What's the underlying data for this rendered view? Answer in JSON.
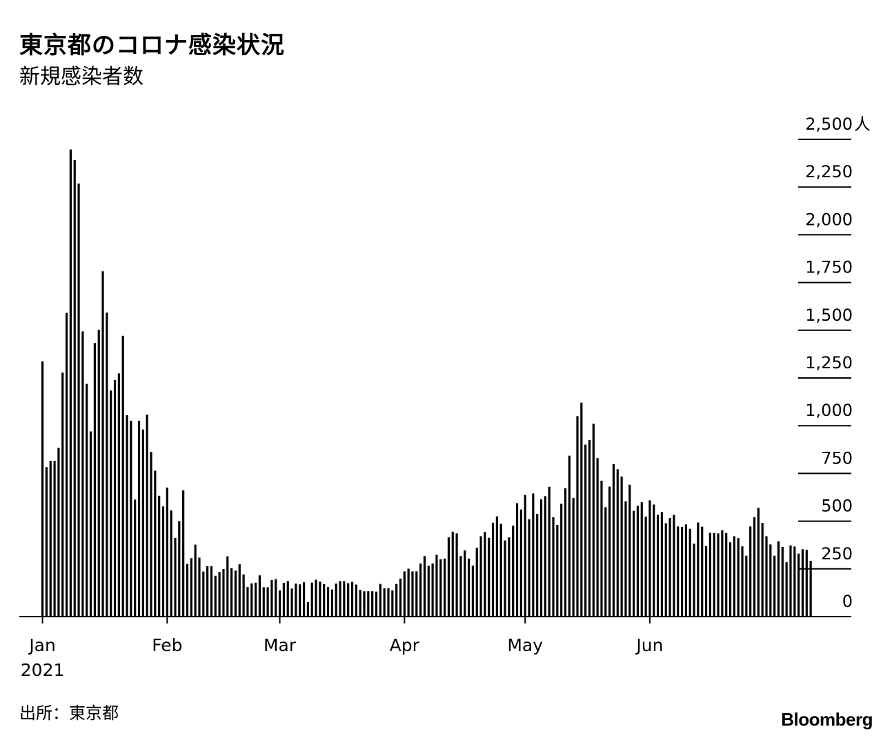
{
  "title": "東京都のコロナ感染状況",
  "subtitle": "新規感染者数",
  "source": "出所：東京都",
  "logo": "Bloomberg",
  "chart_data": {
    "type": "bar",
    "title": "東京都のコロナ感染状況",
    "subtitle": "新規感染者数",
    "y_unit": "人",
    "ylim": [
      0,
      2500
    ],
    "yticks": [
      0,
      250,
      500,
      750,
      1000,
      1250,
      1500,
      1750,
      2000,
      2250,
      2500
    ],
    "ytick_labels": [
      "0",
      "250",
      "500",
      "750",
      "1,000",
      "1,250",
      "1,500",
      "1,750",
      "2,000",
      "2,250",
      "2,500"
    ],
    "x_start_date": "2021-01-01",
    "x_end_date": "2021-06-30",
    "xtick_labels": [
      {
        "label": "Jan",
        "sublabel": "2021",
        "date": "2021-01-01"
      },
      {
        "label": "Feb",
        "sublabel": "",
        "date": "2021-02-01"
      },
      {
        "label": "Mar",
        "sublabel": "",
        "date": "2021-03-01"
      },
      {
        "label": "Apr",
        "sublabel": "",
        "date": "2021-04-01"
      },
      {
        "label": "May",
        "sublabel": "",
        "date": "2021-05-01"
      },
      {
        "label": "Jun",
        "sublabel": "",
        "date": "2021-06-01"
      }
    ],
    "bar_color": "#000000",
    "grid": false,
    "values": [
      1337,
      783,
      816,
      816,
      884,
      1278,
      1591,
      2447,
      2392,
      2268,
      1494,
      1219,
      970,
      1433,
      1502,
      1809,
      1592,
      1184,
      1240,
      1274,
      1471,
      1055,
      1026,
      613,
      1026,
      980,
      1058,
      863,
      764,
      633,
      577,
      676,
      556,
      412,
      500,
      661,
      276,
      306,
      377,
      309,
      236,
      264,
      265,
      214,
      234,
      249,
      316,
      254,
      241,
      274,
      221,
      155,
      174,
      178,
      216,
      154,
      154,
      192,
      196,
      137,
      177,
      186,
      147,
      173,
      169,
      180,
      76,
      178,
      193,
      183,
      170,
      155,
      142,
      173,
      186,
      186,
      175,
      182,
      168,
      140,
      133,
      133,
      133,
      131,
      171,
      148,
      149,
      137,
      171,
      199,
      237,
      251,
      237,
      237,
      278,
      317,
      266,
      278,
      323,
      300,
      304,
      415,
      445,
      436,
      317,
      347,
      304,
      267,
      361,
      421,
      443,
      413,
      492,
      525,
      486,
      399,
      415,
      476,
      594,
      561,
      637,
      510,
      645,
      538,
      614,
      631,
      680,
      521,
      480,
      591,
      672,
      843,
      621,
      1050,
      1121,
      901,
      925,
      1010,
      830,
      712,
      573,
      681,
      799,
      772,
      734,
      604,
      691,
      554,
      580,
      599,
      524,
      609,
      587,
      533,
      548,
      489,
      516,
      533,
      472,
      470,
      483,
      460,
      382,
      493,
      471,
      369,
      439,
      438,
      436,
      452,
      438,
      389,
      421,
      411,
      368,
      319,
      472,
      521,
      570,
      491,
      421,
      378,
      319,
      394,
      365,
      285,
      373,
      367,
      330,
      353,
      350,
      292
    ]
  }
}
